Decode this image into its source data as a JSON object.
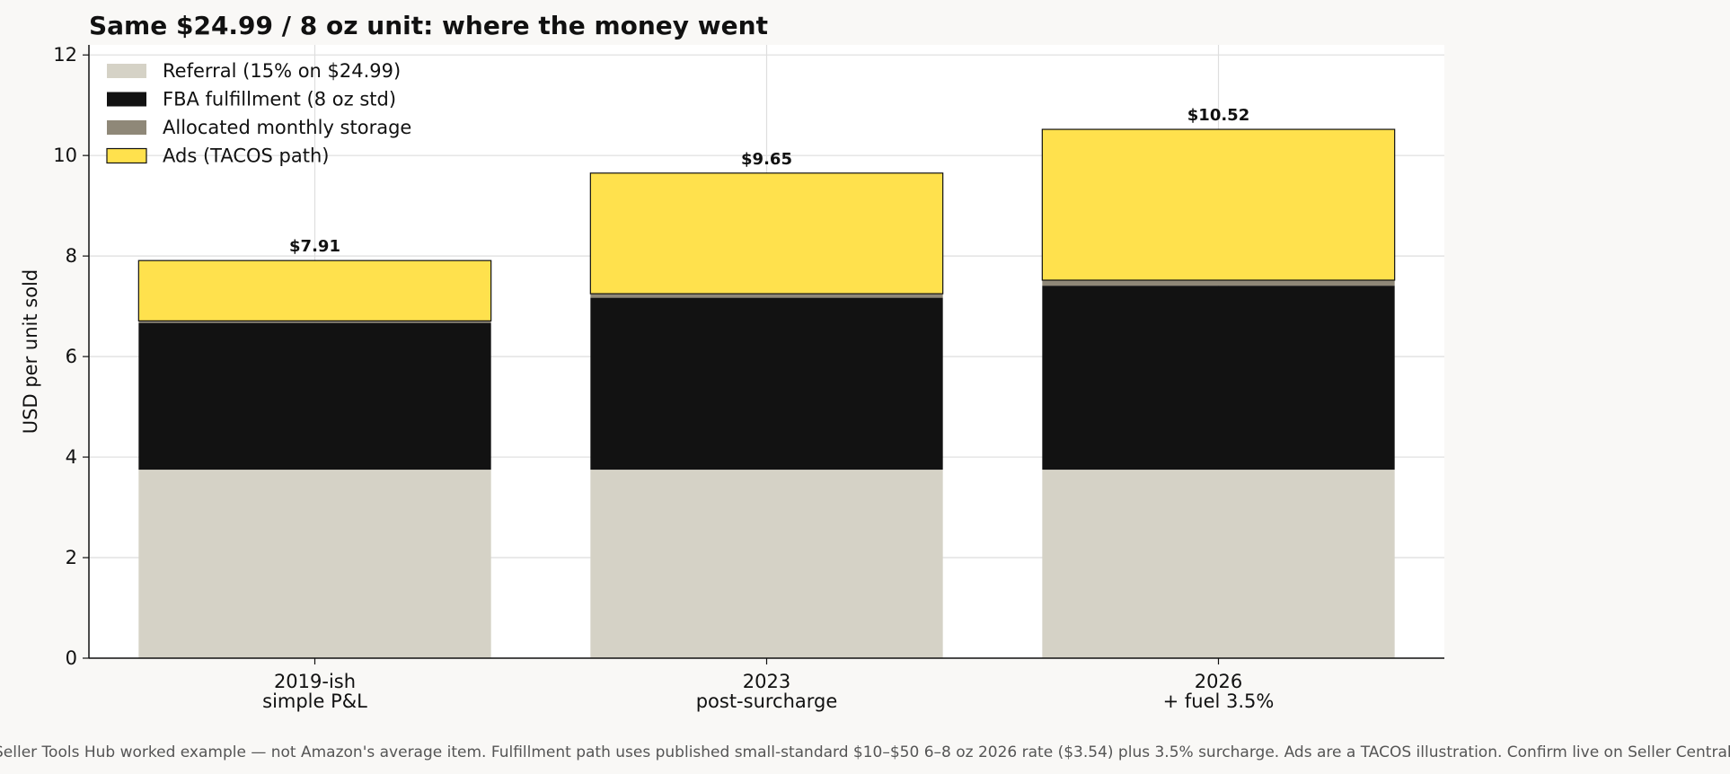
{
  "chart_data": {
    "type": "bar",
    "stacked": true,
    "title": "Same $24.99 / 8 oz unit: where the money went",
    "xlabel": "",
    "ylabel": "USD per unit sold",
    "ylim": [
      0,
      12.2
    ],
    "yticks": [
      0,
      2,
      4,
      6,
      8,
      10,
      12
    ],
    "grid": true,
    "legend_position": "top-left",
    "categories": [
      [
        "2019-ish",
        "simple P&L"
      ],
      [
        "2023",
        "post-surcharge"
      ],
      [
        "2026",
        "+ fuel 3.5%"
      ]
    ],
    "series": [
      {
        "name": "Referral (15% on $24.99)",
        "color": "#d5d2c6",
        "values": [
          3.75,
          3.75,
          3.75
        ]
      },
      {
        "name": "FBA fulfillment (8 oz std)",
        "color": "#121212",
        "values": [
          2.92,
          3.42,
          3.66
        ]
      },
      {
        "name": "Allocated monthly storage",
        "color": "#8f8878",
        "values": [
          0.04,
          0.08,
          0.11
        ]
      },
      {
        "name": "Ads (TACOS path)",
        "color": "#ffe14d",
        "values": [
          1.2,
          2.4,
          3.0
        ]
      }
    ],
    "totals": [
      "$7.91",
      "$9.65",
      "$10.52"
    ]
  },
  "footnote": "Seller Tools Hub worked example — not Amazon's average item. Fulfillment path uses published small-standard $10–$50 6–8 oz 2026 rate ($3.54) plus 3.5% surcharge. Ads are a TACOS illustration. Confirm live on Seller Central."
}
